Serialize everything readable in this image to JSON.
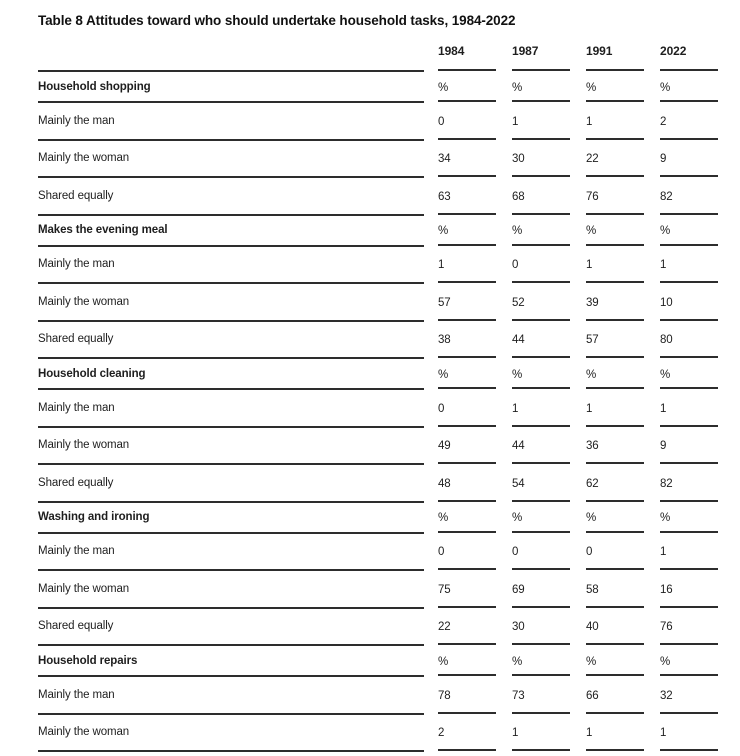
{
  "table": {
    "title": "Table 8 Attitudes toward who should undertake household tasks, 1984-2022",
    "columns": [
      "1984",
      "1987",
      "1991",
      "2022"
    ],
    "unit_symbol": "%",
    "sections": [
      {
        "heading": "Household shopping",
        "unit_row": [
          "%",
          "%",
          "%",
          "%"
        ],
        "rows": [
          {
            "label": "Mainly the man",
            "values": [
              "0",
              "1",
              "1",
              "2"
            ]
          },
          {
            "label": "Mainly the woman",
            "values": [
              "34",
              "30",
              "22",
              "9"
            ]
          },
          {
            "label": "Shared equally",
            "values": [
              "63",
              "68",
              "76",
              "82"
            ]
          }
        ]
      },
      {
        "heading": "Makes the evening meal",
        "unit_row": [
          "%",
          "%",
          "%",
          "%"
        ],
        "rows": [
          {
            "label": "Mainly the man",
            "values": [
              "1",
              "0",
              "1",
              "1"
            ]
          },
          {
            "label": "Mainly the woman",
            "values": [
              "57",
              "52",
              "39",
              "10"
            ]
          },
          {
            "label": "Shared equally",
            "values": [
              "38",
              "44",
              "57",
              "80"
            ]
          }
        ]
      },
      {
        "heading": "Household cleaning",
        "unit_row": [
          "%",
          "%",
          "%",
          "%"
        ],
        "rows": [
          {
            "label": "Mainly the man",
            "values": [
              "0",
              "1",
              "1",
              "1"
            ]
          },
          {
            "label": "Mainly the woman",
            "values": [
              "49",
              "44",
              "36",
              "9"
            ]
          },
          {
            "label": "Shared equally",
            "values": [
              "48",
              "54",
              "62",
              "82"
            ]
          }
        ]
      },
      {
        "heading": "Washing and ironing",
        "unit_row": [
          "%",
          "%",
          "%",
          "%"
        ],
        "rows": [
          {
            "label": "Mainly the man",
            "values": [
              "0",
              "0",
              "0",
              "1"
            ]
          },
          {
            "label": "Mainly the woman",
            "values": [
              "75",
              "69",
              "58",
              "16"
            ]
          },
          {
            "label": "Shared equally",
            "values": [
              "22",
              "30",
              "40",
              "76"
            ]
          }
        ]
      },
      {
        "heading": "Household repairs",
        "unit_row": [
          "%",
          "%",
          "%",
          "%"
        ],
        "rows": [
          {
            "label": "Mainly the man",
            "values": [
              "78",
              "73",
              "66",
              "32"
            ]
          },
          {
            "label": "Mainly the woman",
            "values": [
              "2",
              "1",
              "1",
              "1"
            ]
          }
        ]
      }
    ],
    "colors": {
      "text": "#1e1e1e",
      "rule": "#2d2d2d",
      "background": "#ffffff"
    }
  }
}
